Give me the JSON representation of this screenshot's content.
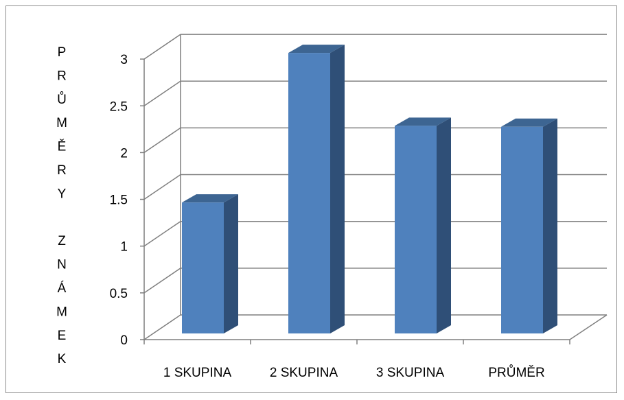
{
  "chart_data": {
    "type": "bar",
    "style": "3d-column",
    "categories": [
      "1 SKUPINA",
      "2 SKUPINA",
      "3 SKUPINA",
      "PRŮMĚR"
    ],
    "series": [
      {
        "values": [
          1.4,
          3.0,
          2.22,
          2.21
        ]
      }
    ],
    "ylabel_letters": [
      "P",
      "R",
      "Ů",
      "M",
      "Ě",
      "R",
      "Y",
      "",
      "Z",
      "N",
      "Á",
      "M",
      "E",
      "K"
    ],
    "ylabel": "PRŮMĚRY ZNÁMEK",
    "ylim": [
      0,
      3
    ],
    "yticks": [
      "0",
      "0.5",
      "1",
      "1.5",
      "2",
      "2.5",
      "3"
    ],
    "grid": true,
    "legend": "none",
    "colors": {
      "front": "#4f81bd",
      "side": "#2f4f77",
      "top": "#3d6592",
      "grid": "#7f7f7f"
    }
  }
}
